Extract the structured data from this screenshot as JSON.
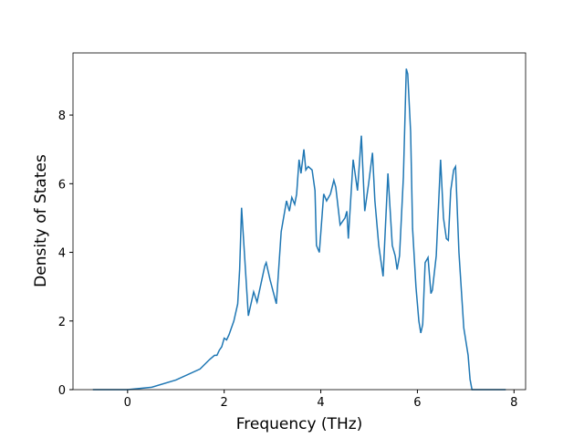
{
  "chart_data": {
    "type": "line",
    "x_label": "Frequency (THz)",
    "y_label": "Density of States",
    "x": [
      -0.72,
      0,
      0.5,
      1.0,
      1.5,
      1.7,
      1.8,
      1.85,
      1.9,
      1.95,
      2.0,
      2.05,
      2.1,
      2.2,
      2.28,
      2.32,
      2.36,
      2.5,
      2.61,
      2.68,
      2.84,
      2.87,
      2.95,
      3.08,
      3.18,
      3.29,
      3.35,
      3.4,
      3.46,
      3.5,
      3.55,
      3.59,
      3.65,
      3.69,
      3.74,
      3.82,
      3.88,
      3.91,
      3.97,
      4.06,
      4.12,
      4.2,
      4.27,
      4.31,
      4.4,
      4.5,
      4.54,
      4.57,
      4.67,
      4.76,
      4.82,
      4.84,
      4.91,
      4.99,
      5.07,
      5.12,
      5.2,
      5.29,
      5.39,
      5.48,
      5.54,
      5.58,
      5.63,
      5.71,
      5.77,
      5.8,
      5.86,
      5.9,
      5.97,
      6.03,
      6.07,
      6.11,
      6.16,
      6.22,
      6.28,
      6.31,
      6.39,
      6.48,
      6.54,
      6.6,
      6.64,
      6.69,
      6.75,
      6.79,
      6.86,
      6.96,
      7.05,
      7.09,
      7.13,
      7.83
    ],
    "series": [
      {
        "color": "#1f77b4",
        "values": [
          0,
          0,
          0.07,
          0.28,
          0.6,
          0.88,
          1.0,
          1.0,
          1.15,
          1.25,
          1.5,
          1.45,
          1.6,
          2.0,
          2.5,
          3.5,
          5.3,
          2.15,
          2.85,
          2.55,
          3.6,
          3.7,
          3.2,
          2.5,
          4.6,
          5.5,
          5.2,
          5.6,
          5.4,
          5.7,
          6.7,
          6.3,
          7.0,
          6.4,
          6.5,
          6.4,
          5.8,
          4.2,
          4.0,
          5.7,
          5.5,
          5.7,
          6.1,
          5.9,
          4.8,
          5.0,
          5.2,
          4.4,
          6.7,
          5.8,
          7.0,
          7.4,
          5.2,
          6.0,
          6.9,
          5.5,
          4.2,
          3.3,
          6.3,
          4.2,
          3.9,
          3.5,
          3.9,
          6.2,
          9.35,
          9.2,
          7.5,
          4.7,
          3.0,
          2.0,
          1.65,
          1.9,
          3.7,
          3.85,
          2.8,
          2.9,
          3.9,
          6.7,
          5.0,
          4.4,
          4.35,
          5.8,
          6.4,
          6.5,
          4.0,
          1.8,
          1.0,
          0.3,
          0,
          0
        ]
      }
    ],
    "xlim": [
      -1.13,
      8.24
    ],
    "ylim": [
      0,
      9.81
    ],
    "xticks": [
      0,
      2,
      4,
      6,
      8
    ],
    "yticks": [
      0,
      2,
      4,
      6,
      8
    ]
  }
}
